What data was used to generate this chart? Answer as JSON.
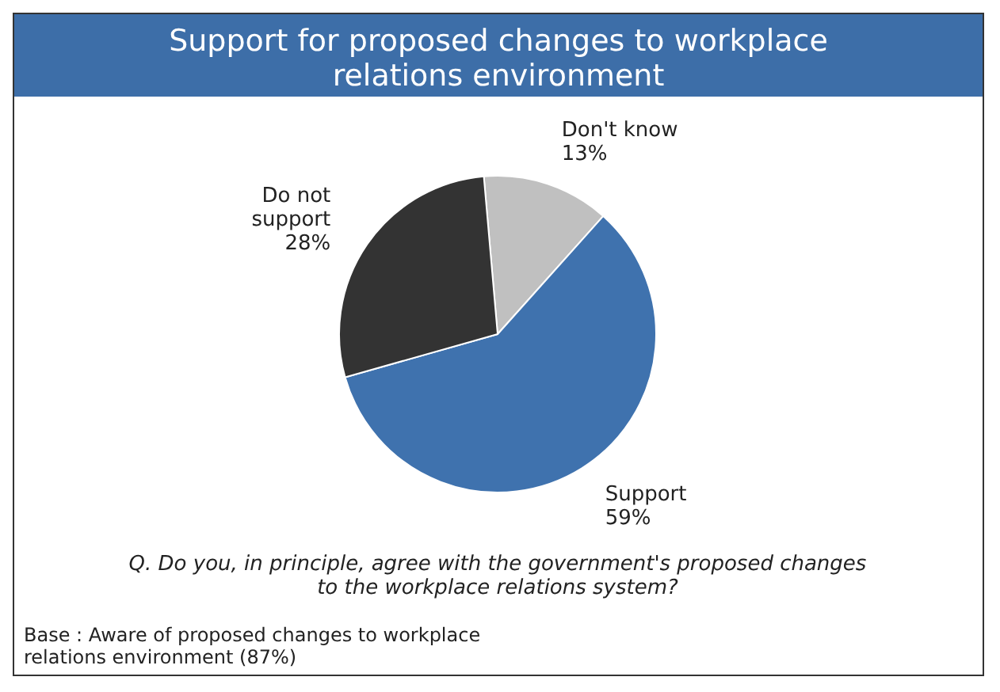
{
  "chart_data": {
    "type": "pie",
    "title": "Support for proposed changes to workplace relations environment",
    "categories": [
      "Don't know",
      "Support",
      "Do not support"
    ],
    "values": [
      13,
      59,
      28
    ],
    "value_labels": [
      "13%",
      "59%",
      "28%"
    ],
    "colors": [
      "#c0c0c0",
      "#3f72ae",
      "#333333"
    ],
    "legend": false,
    "annotations": [
      "Q. Do you, in principle, agree with the government's proposed changes to the workplace relations system?",
      "Base : Aware of proposed changes to workplace relations environment (87%)"
    ]
  }
}
